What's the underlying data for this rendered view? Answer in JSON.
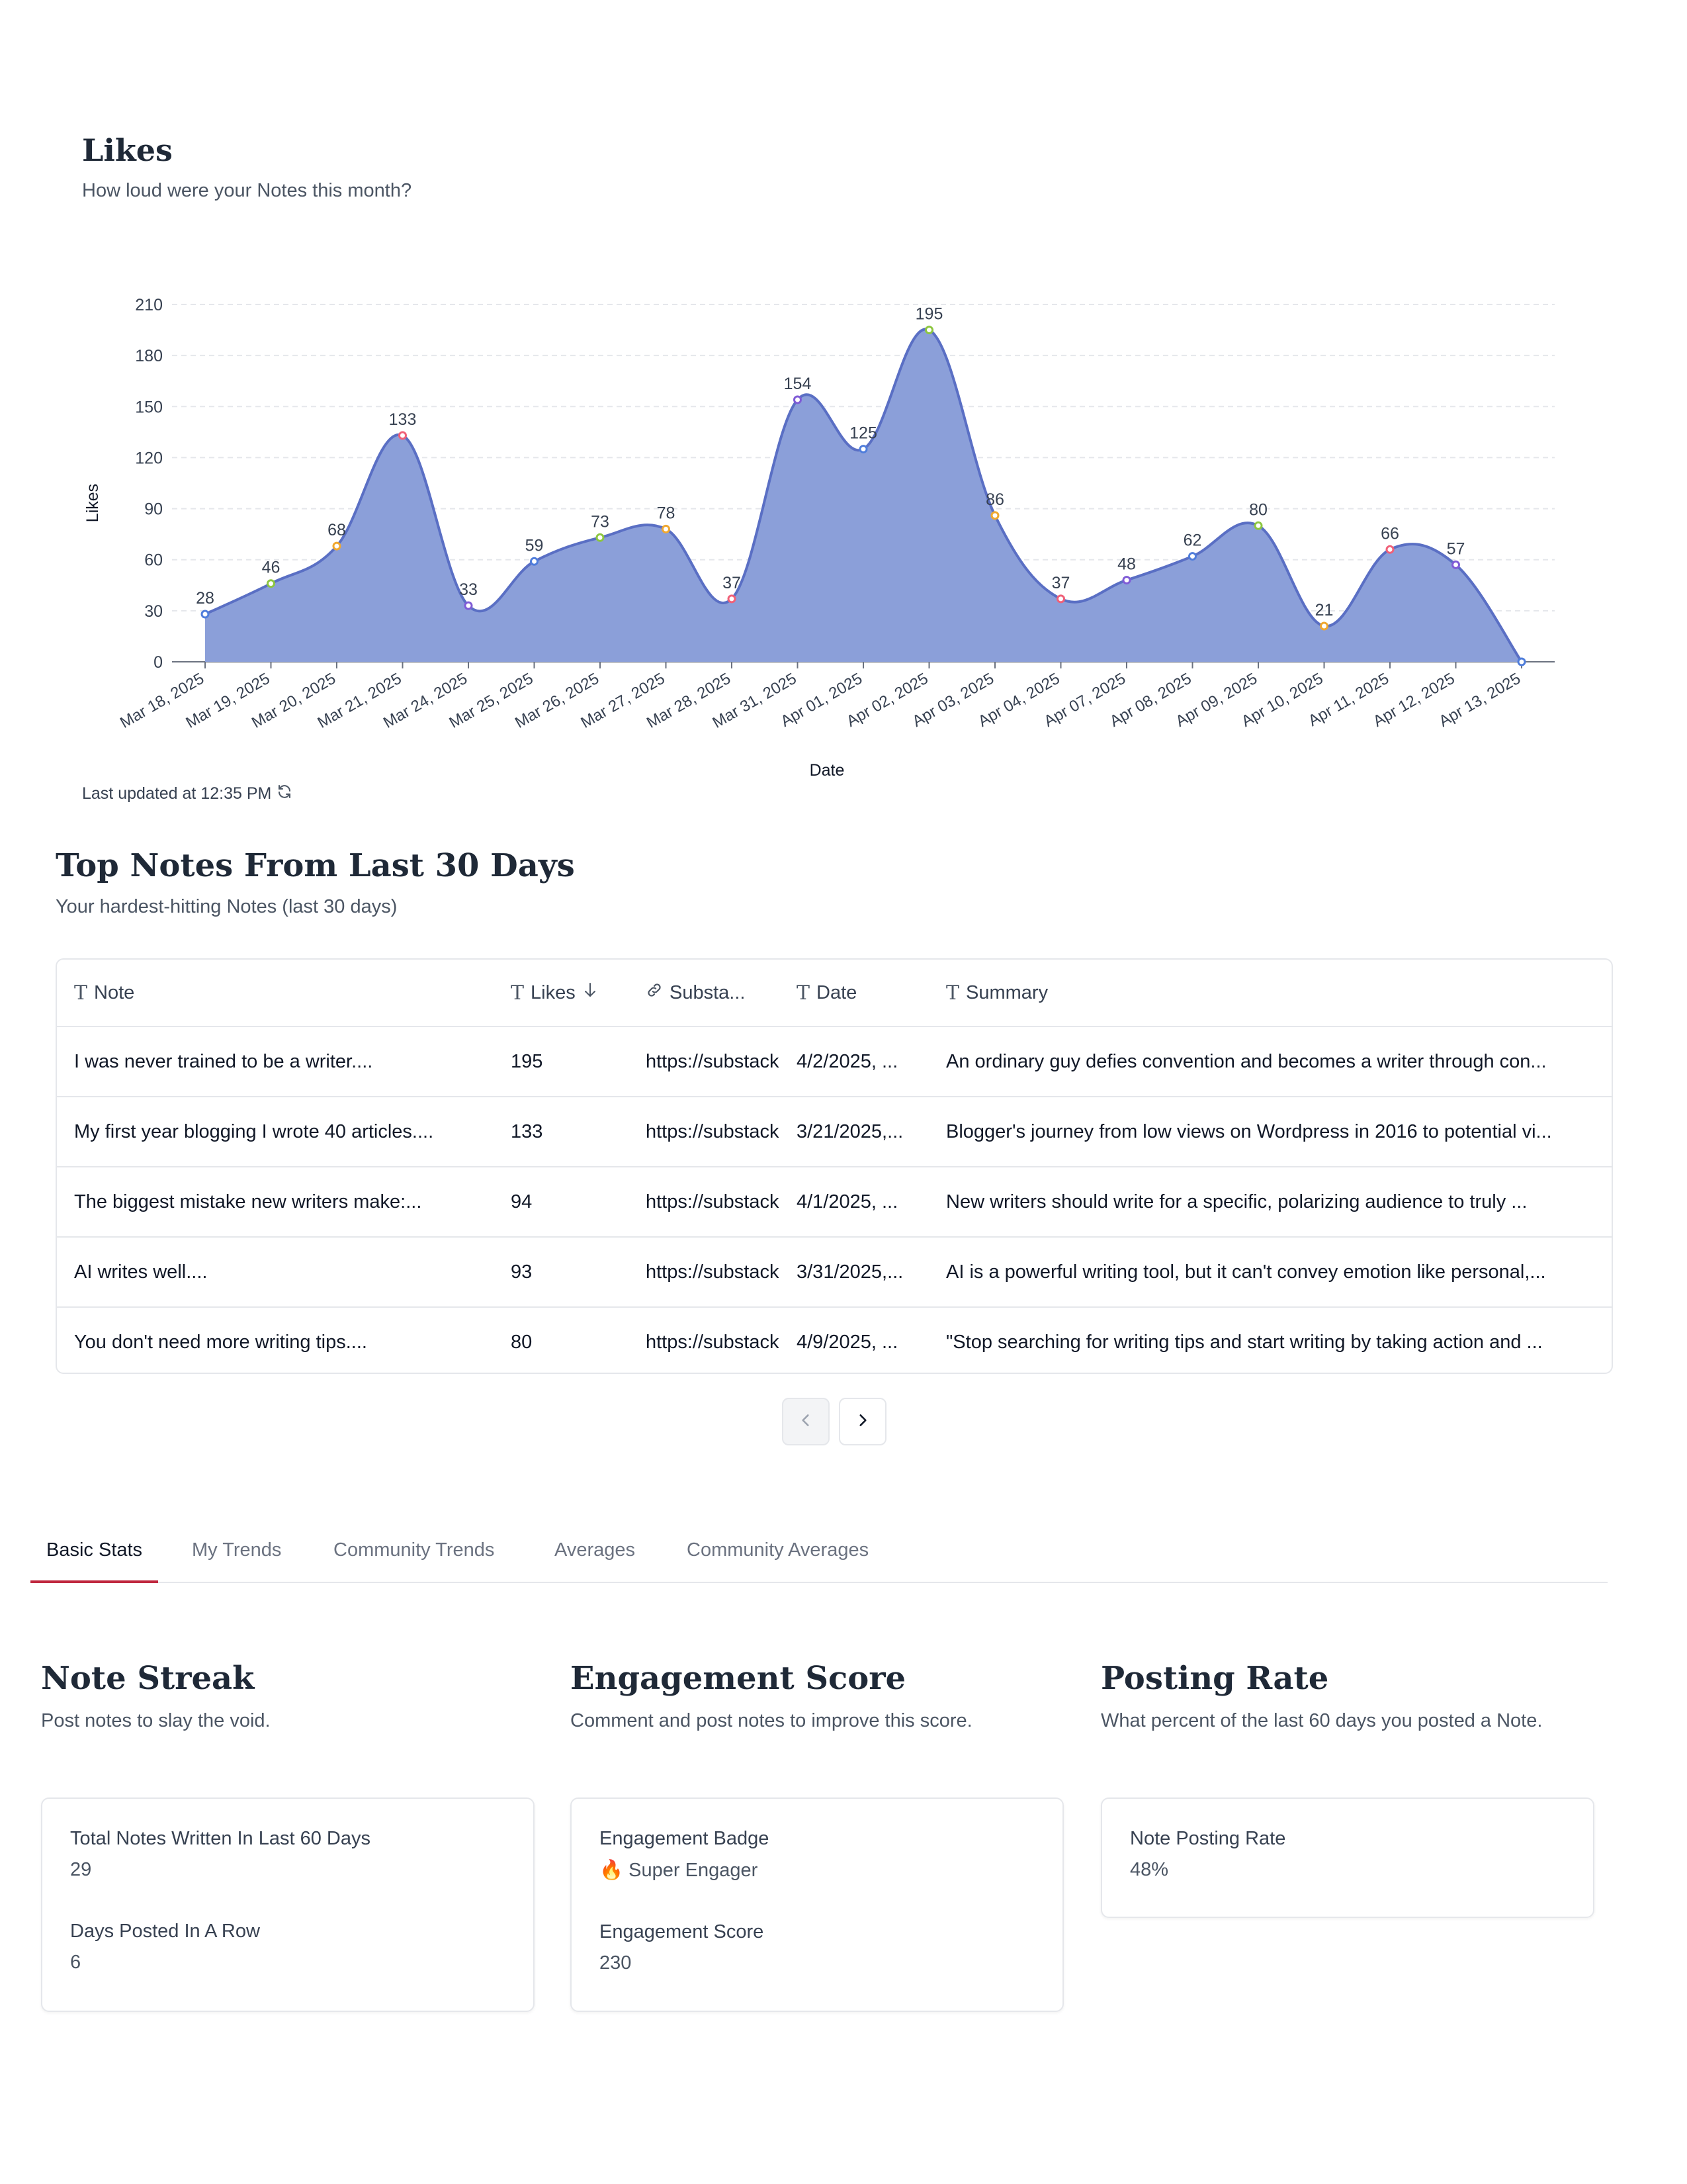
{
  "chart": {
    "title": "Likes",
    "subtitle": "How loud were your Notes this month?",
    "updated": "Last updated at 12:35 PM"
  },
  "chart_data": {
    "type": "area",
    "title": "Likes",
    "xlabel": "Date",
    "ylabel": "Likes",
    "ylim": [
      0,
      210
    ],
    "yticks": [
      0,
      30,
      60,
      90,
      120,
      150,
      180,
      210
    ],
    "grid": true,
    "area_color": "#8b9fd9",
    "line_color": "#5a6fc4",
    "point_colors": [
      "#4f7ddb",
      "#8cc63f",
      "#f0a830",
      "#f06078",
      "#7f5bd6"
    ],
    "categories": [
      "Mar 18, 2025",
      "Mar 19, 2025",
      "Mar 20, 2025",
      "Mar 21, 2025",
      "Mar 24, 2025",
      "Mar 25, 2025",
      "Mar 26, 2025",
      "Mar 27, 2025",
      "Mar 28, 2025",
      "Mar 31, 2025",
      "Apr 01, 2025",
      "Apr 02, 2025",
      "Apr 03, 2025",
      "Apr 04, 2025",
      "Apr 07, 2025",
      "Apr 08, 2025",
      "Apr 09, 2025",
      "Apr 10, 2025",
      "Apr 11, 2025",
      "Apr 12, 2025",
      "Apr 13, 2025"
    ],
    "values": [
      28,
      46,
      68,
      133,
      33,
      59,
      73,
      78,
      37,
      154,
      125,
      195,
      86,
      37,
      48,
      62,
      80,
      21,
      66,
      57,
      0
    ],
    "value_labels": [
      "28",
      "46",
      "68",
      "133",
      "33",
      "59",
      "73",
      "78",
      "37",
      "154",
      "125",
      "195",
      "86",
      "37",
      "48",
      "62",
      "80",
      "21",
      "66",
      "57",
      ""
    ]
  },
  "notes": {
    "title": "Top Notes From Last 30 Days",
    "subtitle": "Your hardest-hitting Notes (last 30 days)",
    "columns": {
      "note": "Note",
      "likes": "Likes",
      "substack": "Substa...",
      "date": "Date",
      "summary": "Summary"
    },
    "rows": [
      {
        "note": "I was never trained to be a writer....",
        "likes": "195",
        "url": "https://substack.com",
        "date": "4/2/2025, ...",
        "summary": "An ordinary guy defies convention and becomes a writer through con..."
      },
      {
        "note": "My first year blogging I wrote 40 articles....",
        "likes": "133",
        "url": "https://substack.com",
        "date": "3/21/2025,...",
        "summary": "Blogger's journey from low views on Wordpress in 2016 to potential vi..."
      },
      {
        "note": "The biggest mistake new writers make:...",
        "likes": "94",
        "url": "https://substack.com",
        "date": "4/1/2025, ...",
        "summary": "New writers should write for a specific, polarizing audience to truly ..."
      },
      {
        "note": "AI writes well....",
        "likes": "93",
        "url": "https://substack.com",
        "date": "3/31/2025,...",
        "summary": "AI is a powerful writing tool, but it can't convey emotion like personal,..."
      },
      {
        "note": "You don't need more writing tips....",
        "likes": "80",
        "url": "https://substack.com",
        "date": "4/9/2025, ...",
        "summary": "\"Stop searching for writing tips and start writing by taking action and ..."
      }
    ]
  },
  "tabs": [
    "Basic Stats",
    "My Trends",
    "Community Trends",
    "Averages",
    "Community Averages"
  ],
  "stats": {
    "streak": {
      "title": "Note Streak",
      "subtitle": "Post notes to slay the void.",
      "l1": "Total Notes Written In Last 60 Days",
      "v1": "29",
      "l2": "Days Posted In A Row",
      "v2": "6"
    },
    "engagement": {
      "title": "Engagement Score",
      "subtitle": "Comment and post notes to improve this score.",
      "l1": "Engagement Badge",
      "v1": "🔥 Super Engager",
      "l2": "Engagement Score",
      "v2": "230"
    },
    "posting": {
      "title": "Posting Rate",
      "subtitle": "What percent of the last 60 days you posted a Note.",
      "l1": "Note Posting Rate",
      "v1": "48%"
    }
  }
}
